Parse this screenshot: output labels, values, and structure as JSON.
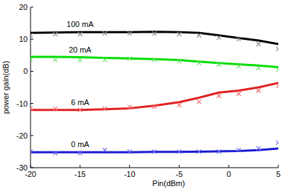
{
  "chart_data": {
    "type": "line",
    "x_label": "Pin(dBm)",
    "y_label": "power gain(dB)",
    "x": [
      -20,
      -17.5,
      -15,
      -12.5,
      -10,
      -7.5,
      -5,
      -3,
      -1,
      1,
      3,
      5
    ],
    "xlim": [
      -20,
      5
    ],
    "xticks": [
      -20,
      -15,
      -10,
      -5,
      0,
      5
    ],
    "ylim": [
      -30,
      20
    ],
    "yticks": [
      -30,
      -20,
      -10,
      0,
      10,
      20
    ],
    "grid": false,
    "series": [
      {
        "name": "100 mA",
        "type": "line",
        "color": "#000000",
        "values": [
          12,
          12.1,
          12.2,
          12.2,
          12.2,
          12.3,
          12.2,
          12,
          11.2,
          10.4,
          9.6,
          8.5
        ]
      },
      {
        "name": "20 mA",
        "type": "line",
        "color": "#00dd00",
        "values": [
          4.5,
          4.5,
          4.4,
          4.2,
          4,
          3.8,
          3.5,
          3,
          2.6,
          2.2,
          1.8,
          1.3
        ]
      },
      {
        "name": "6 mA",
        "type": "line",
        "color": "#e02020",
        "values": [
          -12,
          -12,
          -12,
          -11.8,
          -11.5,
          -10.7,
          -9.6,
          -8.2,
          -6.6,
          -6,
          -5,
          -3.6
        ]
      },
      {
        "name": "0 mA",
        "type": "line",
        "color": "#1a1ad0",
        "values": [
          -25.2,
          -25.2,
          -25.2,
          -25.2,
          -25.2,
          -25.1,
          -25.1,
          -25,
          -24.9,
          -24.8,
          -24.5,
          -24
        ]
      },
      {
        "type": "scatter",
        "marker": "x",
        "color": "#909090",
        "values": [
          11.2,
          11.6,
          11.6,
          11.8,
          11.8,
          11.8,
          11.6,
          11.2,
          10.5,
          10,
          8.5,
          7
        ]
      },
      {
        "type": "scatter",
        "marker": "x",
        "color": "#70e070",
        "values": [
          3.6,
          3.6,
          3.5,
          3.6,
          4,
          3.6,
          3.1,
          2.6,
          2.1,
          1.6,
          1,
          0.5
        ]
      },
      {
        "type": "scatter",
        "marker": "x",
        "color": "#f07070",
        "values": [
          -11.6,
          -11.6,
          -12,
          -11.6,
          -11.1,
          -11,
          -10.5,
          -9.5,
          -7.6,
          -7,
          -6,
          -4.6
        ]
      },
      {
        "type": "scatter",
        "marker": "x",
        "color": "#7070f0",
        "values": [
          -25,
          -25.5,
          -25.5,
          -24.5,
          -25,
          -25,
          -25,
          -25,
          -25,
          -24.5,
          -24,
          -22.2
        ]
      }
    ]
  }
}
